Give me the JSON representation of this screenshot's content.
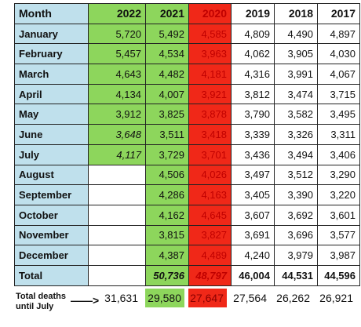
{
  "headers": [
    "Month",
    "2022",
    "2021",
    "2020",
    "2019",
    "2018",
    "2017"
  ],
  "rows": [
    {
      "month": "January",
      "values": [
        "5,720",
        "5,492",
        "4,585",
        "4,809",
        "4,490",
        "4,897"
      ]
    },
    {
      "month": "February",
      "values": [
        "5,457",
        "4,534",
        "3,963",
        "4,062",
        "3,905",
        "4,030"
      ]
    },
    {
      "month": "March",
      "values": [
        "4,643",
        "4,482",
        "4,181",
        "4,316",
        "3,991",
        "4,067"
      ]
    },
    {
      "month": "April",
      "values": [
        "4,134",
        "4,007",
        "3,921",
        "3,812",
        "3,474",
        "3,715"
      ]
    },
    {
      "month": "May",
      "values": [
        "3,912",
        "3,825",
        "3,878",
        "3,790",
        "3,582",
        "3,495"
      ]
    },
    {
      "month": "June",
      "values": [
        "3,648",
        "3,511",
        "3,418",
        "3,339",
        "3,326",
        "3,311"
      ]
    },
    {
      "month": "July",
      "values": [
        "4,117",
        "3,729",
        "3,701",
        "3,436",
        "3,494",
        "3,406"
      ]
    },
    {
      "month": "August",
      "values": [
        "",
        "4,506",
        "4,026",
        "3,497",
        "3,512",
        "3,290"
      ]
    },
    {
      "month": "September",
      "values": [
        "",
        "4,286",
        "4,163",
        "3,405",
        "3,390",
        "3,220"
      ]
    },
    {
      "month": "October",
      "values": [
        "",
        "4,162",
        "4,645",
        "3,607",
        "3,692",
        "3,601"
      ]
    },
    {
      "month": "November",
      "values": [
        "",
        "3,815",
        "3,827",
        "3,691",
        "3,696",
        "3,577"
      ]
    },
    {
      "month": "December",
      "values": [
        "",
        "4,387",
        "4,489",
        "4,240",
        "3,979",
        "3,987"
      ]
    }
  ],
  "total": {
    "label": "Total",
    "values": [
      "",
      "50,736",
      "48,797",
      "46,004",
      "44,531",
      "44,596"
    ]
  },
  "deaths_until_july": {
    "label_line1": "Total deaths",
    "label_line2": "until July",
    "arrow": "——>",
    "values": [
      "31,631",
      "29,580",
      "27,647",
      "27,564",
      "26,262",
      "26,921"
    ]
  },
  "colors": {
    "month_col": "#bfe0ec",
    "col_2021_green": "#8dd65c",
    "col_2022_green": "#8dd65c",
    "col_2020_red": "#f02818"
  }
}
